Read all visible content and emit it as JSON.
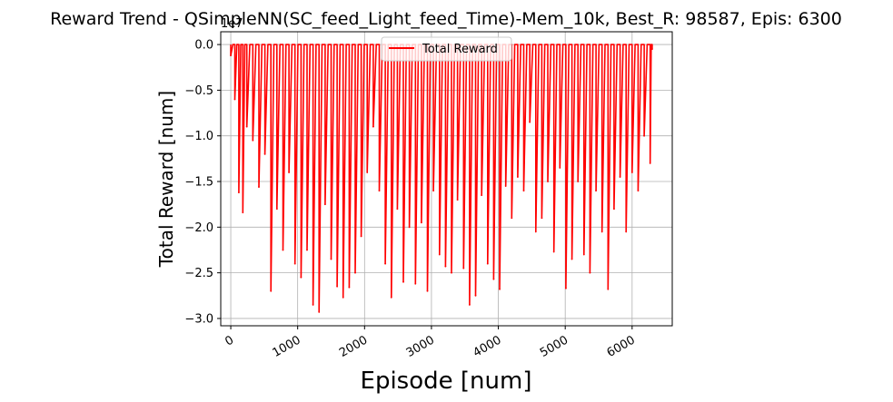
{
  "chart_data": {
    "type": "line",
    "title": "Reward Trend - QSimpleNN(SC_feed_Light_feed_Time)-Mem_10k, Best_R: 98587, Epis: 6300",
    "xlabel": "Episode [num]",
    "ylabel": "Total Reward [num]",
    "y_offset_label": "1e7",
    "xlim": [
      -150,
      6600
    ],
    "ylim": [
      -3.08,
      0.14
    ],
    "x_ticks": [
      0,
      1000,
      2000,
      3000,
      4000,
      5000,
      6000
    ],
    "x_tick_labels": [
      "0",
      "1000",
      "2000",
      "3000",
      "4000",
      "5000",
      "6000"
    ],
    "y_ticks": [
      0.0,
      -0.5,
      -1.0,
      -1.5,
      -2.0,
      -2.5,
      -3.0
    ],
    "y_tick_labels": [
      "0.0",
      "−0.5",
      "−1.0",
      "−1.5",
      "−2.0",
      "−2.5",
      "−3.0"
    ],
    "grid": true,
    "legend": {
      "position": "top-center",
      "entries": [
        "Total Reward"
      ]
    },
    "series": [
      {
        "name": "Total Reward",
        "color": "#ff0000",
        "x": [
          0,
          60,
          120,
          180,
          240,
          330,
          420,
          510,
          600,
          690,
          780,
          870,
          960,
          1050,
          1140,
          1230,
          1320,
          1410,
          1500,
          1590,
          1680,
          1770,
          1860,
          1950,
          2040,
          2130,
          2220,
          2310,
          2400,
          2490,
          2580,
          2670,
          2760,
          2850,
          2940,
          3030,
          3120,
          3210,
          3300,
          3390,
          3480,
          3570,
          3660,
          3750,
          3840,
          3930,
          4020,
          4110,
          4200,
          4290,
          4380,
          4470,
          4560,
          4650,
          4740,
          4830,
          4920,
          5010,
          5100,
          5190,
          5280,
          5370,
          5460,
          5550,
          5640,
          5730,
          5820,
          5910,
          6000,
          6090,
          6180,
          6270,
          6300
        ],
        "y": [
          -0.12,
          -0.6,
          -1.62,
          -1.84,
          -0.9,
          -1.05,
          -1.56,
          -1.2,
          -2.7,
          -1.8,
          -2.25,
          -1.4,
          -2.4,
          -2.55,
          -2.25,
          -2.85,
          -2.93,
          -1.75,
          -2.35,
          -2.65,
          -2.77,
          -2.66,
          -2.5,
          -2.1,
          -1.4,
          -0.9,
          -1.6,
          -2.4,
          -2.77,
          -1.8,
          -2.6,
          -2.0,
          -2.62,
          -1.95,
          -2.7,
          -1.6,
          -2.3,
          -2.43,
          -2.5,
          -1.7,
          -2.45,
          -2.85,
          -2.75,
          -1.65,
          -2.4,
          -2.57,
          -2.68,
          -1.55,
          -1.9,
          -1.45,
          -1.6,
          -0.85,
          -2.05,
          -1.9,
          -1.5,
          -2.27,
          -1.35,
          -2.67,
          -2.35,
          -1.5,
          -2.3,
          -2.5,
          -1.6,
          -2.05,
          -2.68,
          -1.8,
          -1.45,
          -2.05,
          -1.4,
          -1.6,
          -1.0,
          -1.3,
          -0.05
        ],
        "upper_envelope": 0.0
      }
    ]
  }
}
